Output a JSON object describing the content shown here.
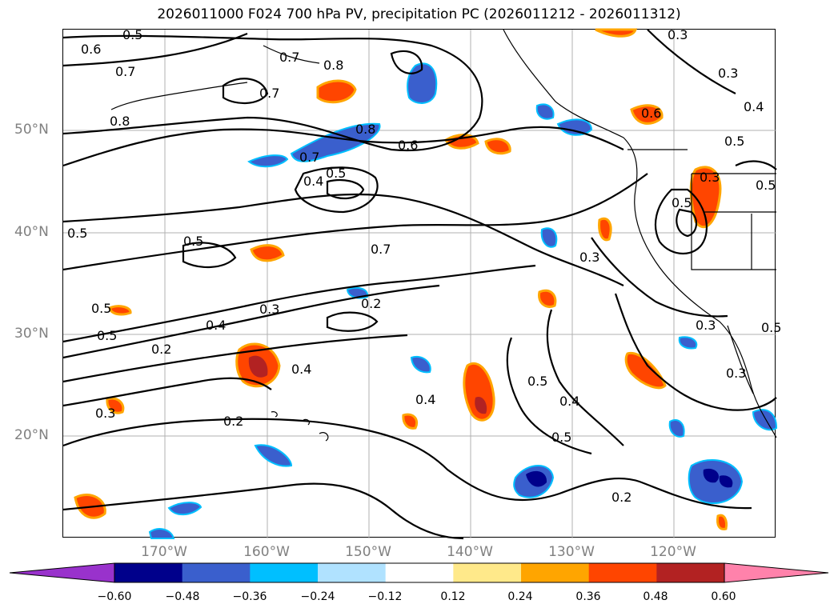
{
  "title": "2026011000 F024 700 hPa PV, precipitation PC (2026011212 - 2026011312)",
  "lat_labels": [
    "50°N",
    "40°N",
    "30°N",
    "20°N"
  ],
  "lon_labels": [
    "170°W",
    "160°W",
    "150°W",
    "140°W",
    "130°W",
    "120°W"
  ],
  "colorbar": {
    "ticks": [
      "−0.60",
      "−0.48",
      "−0.36",
      "−0.24",
      "−0.12",
      "0.12",
      "0.24",
      "0.36",
      "0.48",
      "0.60"
    ],
    "colors": [
      "#9932cc",
      "#00008b",
      "#3a5fcd",
      "#00bfff",
      "#b0e2ff",
      "#ffffff",
      "#ffe98a",
      "#ffa500",
      "#ff4500",
      "#b22222",
      "#ff82ab"
    ]
  },
  "contour_labels": [
    "0.5",
    "0.6",
    "0.7",
    "0.8",
    "0.7",
    "0.8",
    "0.7",
    "0.8",
    "0.7",
    "0.5",
    "0.6",
    "0.3",
    "0.3",
    "0.4",
    "0.6",
    "0.5",
    "0.3",
    "0.5",
    "0.5",
    "0.5",
    "0.7",
    "0.5",
    "0.5",
    "0.3",
    "0.4",
    "0.2",
    "0.3",
    "0.2",
    "0.4",
    "0.3",
    "0.4",
    "0.5",
    "0.4",
    "0.5",
    "0.2",
    "0.2",
    "0.3",
    "0.5",
    "0.5",
    "0.3",
    "0.4"
  ],
  "icons": {
    "map": "weather-map",
    "colorbar": "colorbar-legend"
  }
}
